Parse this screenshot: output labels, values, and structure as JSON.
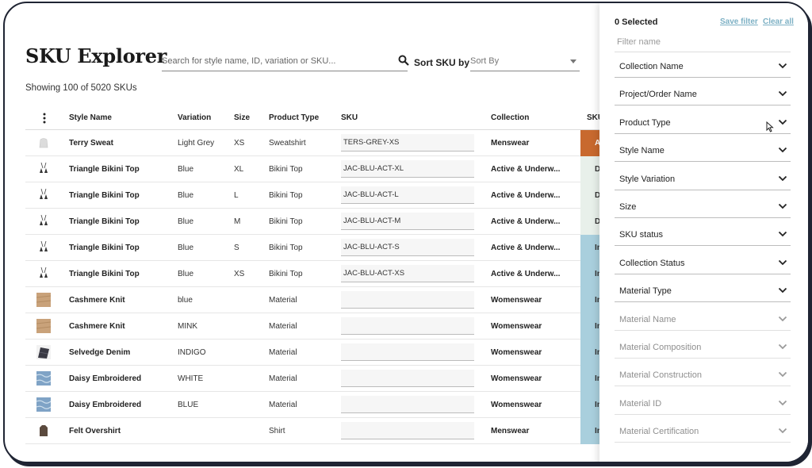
{
  "page": {
    "title": "SKU Explorer",
    "search_placeholder": "Search for style name, ID, variation or SKU...",
    "sort_label": "SKU by",
    "sort_prefix": "Sort",
    "sort_placeholder": "Sort By",
    "count_text": "Showing 100 of 5020 SKUs"
  },
  "table": {
    "headers": {
      "style_name": "Style Name",
      "variation": "Variation",
      "size": "Size",
      "product_type": "Product Type",
      "sku": "SKU",
      "collection": "Collection",
      "status": "SKU"
    },
    "rows": [
      {
        "style": "Terry Sweat",
        "variation": "Light Grey",
        "size": "XS",
        "type": "Sweatshirt",
        "sku": "TERS-GREY-XS",
        "collection": "Menswear",
        "status": "Ap",
        "status_color": "#c8692e",
        "status_text_color": "#ffffff",
        "thumb": "sweat"
      },
      {
        "style": "Triangle Bikini Top",
        "variation": "Blue",
        "size": "XL",
        "type": "Bikini Top",
        "sku": "JAC-BLU-ACT-XL",
        "collection": "Active & Underw...",
        "status": "De",
        "status_color": "#e8f0ea",
        "status_text_color": "#333333",
        "thumb": "bikini"
      },
      {
        "style": "Triangle Bikini Top",
        "variation": "Blue",
        "size": "L",
        "type": "Bikini Top",
        "sku": "JAC-BLU-ACT-L",
        "collection": "Active & Underw...",
        "status": "De",
        "status_color": "#e8f0ea",
        "status_text_color": "#333333",
        "thumb": "bikini"
      },
      {
        "style": "Triangle Bikini Top",
        "variation": "Blue",
        "size": "M",
        "type": "Bikini Top",
        "sku": "JAC-BLU-ACT-M",
        "collection": "Active & Underw...",
        "status": "De",
        "status_color": "#e8f0ea",
        "status_text_color": "#333333",
        "thumb": "bikini"
      },
      {
        "style": "Triangle Bikini Top",
        "variation": "Blue",
        "size": "S",
        "type": "Bikini Top",
        "sku": "JAC-BLU-ACT-S",
        "collection": "Active & Underw...",
        "status": "In",
        "status_color": "#a9cfdd",
        "status_text_color": "#333333",
        "thumb": "bikini"
      },
      {
        "style": "Triangle Bikini Top",
        "variation": "Blue",
        "size": "XS",
        "type": "Bikini Top",
        "sku": "JAC-BLU-ACT-XS",
        "collection": "Active & Underw...",
        "status": "In",
        "status_color": "#a9cfdd",
        "status_text_color": "#333333",
        "thumb": "bikini"
      },
      {
        "style": "Cashmere Knit",
        "variation": "blue",
        "size": "",
        "type": "Material",
        "sku": "",
        "collection": "Womenswear",
        "status": "In",
        "status_color": "#a9cfdd",
        "status_text_color": "#333333",
        "thumb": "knit"
      },
      {
        "style": "Cashmere Knit",
        "variation": "MINK",
        "size": "",
        "type": "Material",
        "sku": "",
        "collection": "Womenswear",
        "status": "In",
        "status_color": "#a9cfdd",
        "status_text_color": "#333333",
        "thumb": "knit"
      },
      {
        "style": "Selvedge Denim",
        "variation": "INDIGO",
        "size": "",
        "type": "Material",
        "sku": "",
        "collection": "Womenswear",
        "status": "In",
        "status_color": "#a9cfdd",
        "status_text_color": "#333333",
        "thumb": "denim"
      },
      {
        "style": "Daisy Embroidered",
        "variation": "WHITE",
        "size": "",
        "type": "Material",
        "sku": "",
        "collection": "Womenswear",
        "status": "In",
        "status_color": "#a9cfdd",
        "status_text_color": "#333333",
        "thumb": "daisy"
      },
      {
        "style": "Daisy Embroidered",
        "variation": "BLUE",
        "size": "",
        "type": "Material",
        "sku": "",
        "collection": "Womenswear",
        "status": "In",
        "status_color": "#a9cfdd",
        "status_text_color": "#333333",
        "thumb": "daisy"
      },
      {
        "style": "Felt Overshirt",
        "variation": "",
        "size": "",
        "type": "Shirt",
        "sku": "",
        "collection": "Menswear",
        "status": "In",
        "status_color": "#a9cfdd",
        "status_text_color": "#333333",
        "thumb": "shirt"
      }
    ]
  },
  "filters": {
    "selected_text": "0 Selected",
    "save_filter": "Save filter",
    "clear_all": "Clear all",
    "name_placeholder": "Filter name",
    "facets": [
      {
        "label": "Collection Name",
        "enabled": true
      },
      {
        "label": "Project/Order Name",
        "enabled": true
      },
      {
        "label": "Product Type",
        "enabled": true
      },
      {
        "label": "Style Name",
        "enabled": true
      },
      {
        "label": "Style Variation",
        "enabled": true
      },
      {
        "label": "Size",
        "enabled": true
      },
      {
        "label": "SKU status",
        "enabled": true
      },
      {
        "label": "Collection Status",
        "enabled": true
      },
      {
        "label": "Material Type",
        "enabled": true
      },
      {
        "label": "Material Name",
        "enabled": false
      },
      {
        "label": "Material Composition",
        "enabled": false
      },
      {
        "label": "Material Construction",
        "enabled": false
      },
      {
        "label": "Material ID",
        "enabled": false
      },
      {
        "label": "Material Certification",
        "enabled": false
      }
    ]
  },
  "colors": {
    "link": "#7cb0c4",
    "approved": "#c8692e",
    "in_progress": "#a9cfdd",
    "development": "#e8f0ea",
    "frame": "#1f2433"
  }
}
